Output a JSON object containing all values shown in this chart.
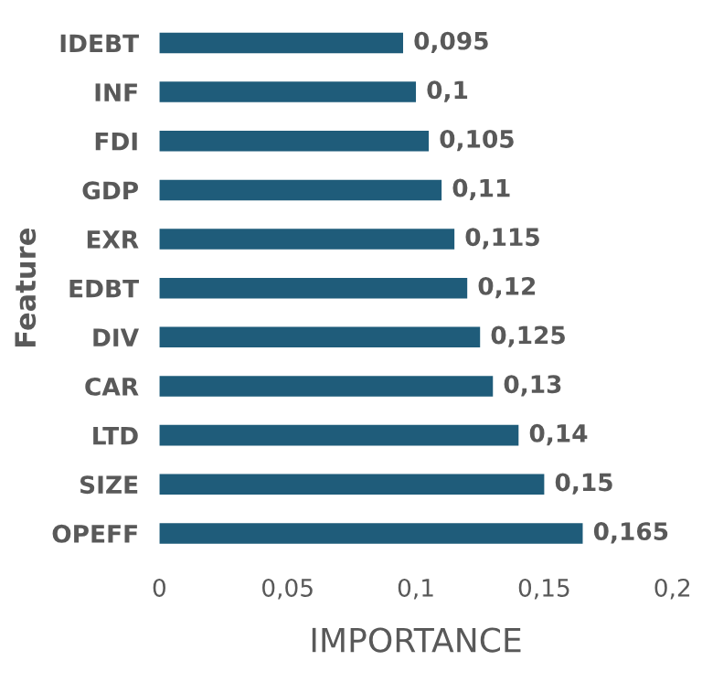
{
  "chart_data": {
    "type": "bar",
    "orientation": "horizontal",
    "xlabel": "IMPORTANCE",
    "ylabel": "Feature",
    "categories": [
      "IDEBT",
      "INF",
      "FDI",
      "GDP",
      "EXR",
      "EDBT",
      "DIV",
      "CAR",
      "LTD",
      "SIZE",
      "OPEFF"
    ],
    "values": [
      0.095,
      0.1,
      0.105,
      0.11,
      0.115,
      0.12,
      0.125,
      0.13,
      0.14,
      0.15,
      0.165
    ],
    "value_labels": [
      "0,095",
      "0,1",
      "0,105",
      "0,11",
      "0,115",
      "0,12",
      "0,125",
      "0,13",
      "0,14",
      "0,15",
      "0,165"
    ],
    "color": "#1f5c7a",
    "xlim": [
      0,
      0.2
    ],
    "xticks": [
      {
        "value": 0,
        "label": "0"
      },
      {
        "value": 0.05,
        "label": "0,05"
      },
      {
        "value": 0.1,
        "label": "0,1"
      },
      {
        "value": 0.15,
        "label": "0,15"
      },
      {
        "value": 0.2,
        "label": "0,2"
      }
    ],
    "grid": false,
    "legend": false
  }
}
